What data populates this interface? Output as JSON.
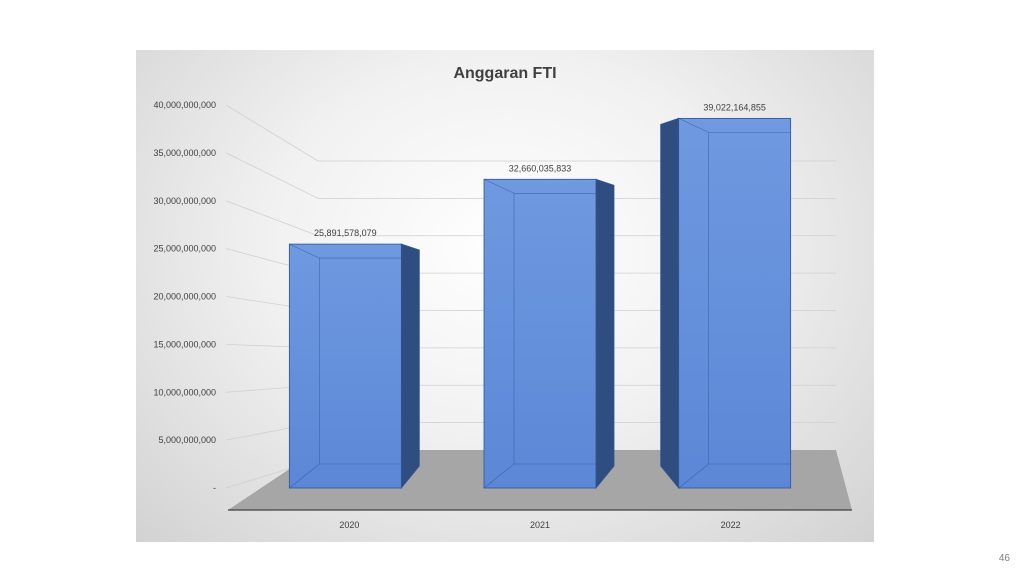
{
  "slide": {
    "page_number": "46"
  },
  "colors": {
    "bar_front": "#5b87d6",
    "bar_front_light": "#6f99e0",
    "bar_side": "#2f4e7f",
    "bar_top": "#7fa6ea",
    "bar_edge": "#2e5597",
    "floor": "#a6a6a6",
    "gridline": "#d0d0d0"
  },
  "chart_data": {
    "type": "bar",
    "style": "3d",
    "title": "Anggaran FTI",
    "xlabel": "",
    "ylabel": "",
    "categories": [
      "2020",
      "2021",
      "2022"
    ],
    "values": [
      25891578079,
      32660035833,
      39022164855
    ],
    "data_labels": [
      "25,891,578,079",
      "32,660,035,833",
      "39,022,164,855"
    ],
    "ylim": [
      0,
      40000000000
    ],
    "yticks": [
      0,
      5000000000,
      10000000000,
      15000000000,
      20000000000,
      25000000000,
      30000000000,
      35000000000,
      40000000000
    ],
    "ytick_labels": [
      "-",
      "5,000,000,000",
      "10,000,000,000",
      "15,000,000,000",
      "20,000,000,000",
      "25,000,000,000",
      "30,000,000,000",
      "35,000,000,000",
      "40,000,000,000"
    ],
    "grid": true,
    "legend": "none"
  }
}
